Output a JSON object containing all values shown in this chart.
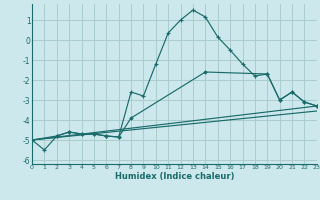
{
  "xlabel": "Humidex (Indice chaleur)",
  "xlim": [
    0,
    23
  ],
  "ylim": [
    -6.2,
    1.8
  ],
  "yticks": [
    -6,
    -5,
    -4,
    -3,
    -2,
    -1,
    0,
    1
  ],
  "xticks": [
    0,
    1,
    2,
    3,
    4,
    5,
    6,
    7,
    8,
    9,
    10,
    11,
    12,
    13,
    14,
    15,
    16,
    17,
    18,
    19,
    20,
    21,
    22,
    23
  ],
  "background_color": "#cde8ec",
  "grid_color": "#aacccc",
  "line_color": "#1a6b6b",
  "line1_x": [
    0,
    1,
    2,
    3,
    4,
    5,
    6,
    7,
    8,
    9,
    10,
    11,
    12,
    13,
    14,
    15,
    16,
    17,
    18,
    19,
    20,
    21,
    22,
    23
  ],
  "line1_y": [
    -5.0,
    -5.5,
    -4.8,
    -4.6,
    -4.7,
    -4.7,
    -4.8,
    -4.85,
    -2.6,
    -2.8,
    -1.2,
    0.35,
    1.0,
    1.5,
    1.15,
    0.15,
    -0.5,
    -1.2,
    -1.8,
    -1.7,
    -3.0,
    -2.6,
    -3.1,
    -3.3
  ],
  "line2_x": [
    0,
    2,
    3,
    4,
    5,
    6,
    7,
    8,
    14,
    19,
    20,
    21,
    22,
    23
  ],
  "line2_y": [
    -5.0,
    -4.8,
    -4.6,
    -4.7,
    -4.7,
    -4.8,
    -4.85,
    -3.9,
    -1.6,
    -1.7,
    -3.0,
    -2.6,
    -3.1,
    -3.3
  ],
  "line3_x": [
    0,
    23
  ],
  "line3_y": [
    -5.0,
    -3.3
  ],
  "line4_x": [
    0,
    23
  ],
  "line4_y": [
    -5.0,
    -3.55
  ]
}
